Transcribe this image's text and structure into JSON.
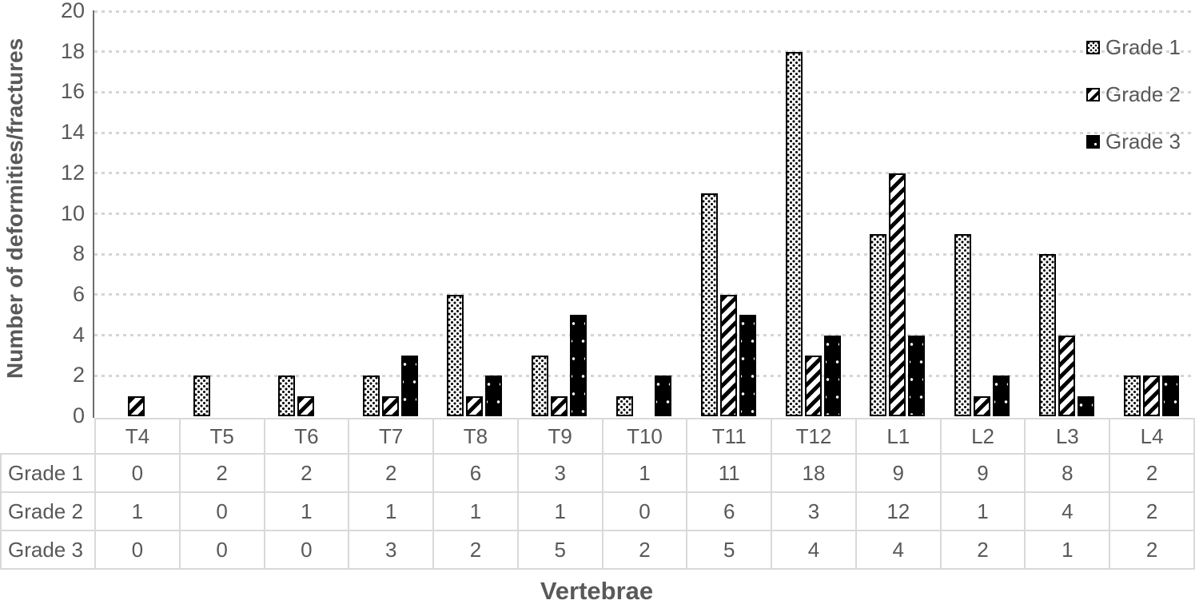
{
  "chart_data": {
    "type": "bar",
    "title": "",
    "xlabel": "Vertebrae",
    "ylabel": "Number of deformities/fractures",
    "ylim": [
      0,
      20
    ],
    "ytick_step": 2,
    "yticks": [
      0,
      2,
      4,
      6,
      8,
      10,
      12,
      14,
      16,
      18,
      20
    ],
    "grid": "horizontal-dashed",
    "legend_position": "top-right",
    "categories": [
      "T4",
      "T5",
      "T6",
      "T7",
      "T8",
      "T9",
      "T10",
      "T11",
      "T12",
      "L1",
      "L2",
      "L3",
      "L4"
    ],
    "series": [
      {
        "name": "Grade 1",
        "pattern": "dotted-grid",
        "values": [
          0,
          2,
          2,
          2,
          6,
          3,
          1,
          11,
          18,
          9,
          9,
          8,
          2
        ]
      },
      {
        "name": "Grade 2",
        "pattern": "diagonal-stripes",
        "values": [
          1,
          0,
          1,
          1,
          1,
          1,
          0,
          6,
          3,
          12,
          1,
          4,
          2
        ]
      },
      {
        "name": "Grade 3",
        "pattern": "black-with-white-dots",
        "values": [
          0,
          0,
          0,
          3,
          2,
          5,
          2,
          5,
          4,
          4,
          2,
          1,
          2
        ]
      }
    ],
    "data_table_shown": true,
    "colors": {
      "bar_fill": "#000000",
      "text": "#595959",
      "gridline": "#d5d5d5",
      "axis_line": "#6e6e6e",
      "table_border": "#d9d9d9",
      "background": "#ffffff"
    }
  }
}
